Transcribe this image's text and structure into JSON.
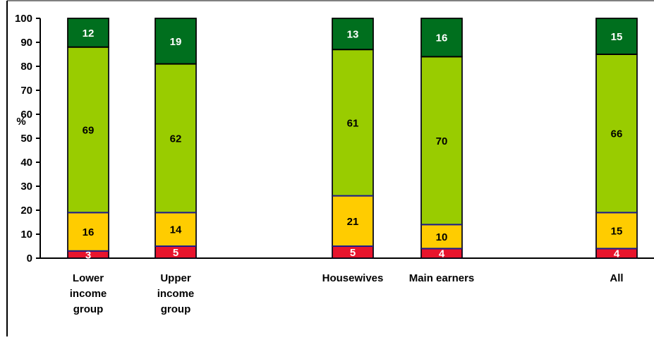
{
  "chart_data": {
    "type": "bar",
    "stacked": true,
    "title": "",
    "xlabel": "",
    "ylabel": "%",
    "ylim": [
      0,
      100
    ],
    "yticks": [
      0,
      10,
      20,
      30,
      40,
      50,
      60,
      70,
      80,
      90,
      100
    ],
    "categories": [
      [
        "Lower",
        "income",
        "group"
      ],
      [
        "Upper",
        "income",
        "group"
      ],
      [
        "Housewives"
      ],
      [
        "Main earners"
      ],
      [
        "All"
      ]
    ],
    "series": [
      {
        "values": [
          3,
          5,
          5,
          4,
          4
        ],
        "color": "#e8142d",
        "label_color": "#ffffff"
      },
      {
        "values": [
          16,
          14,
          21,
          10,
          15
        ],
        "color": "#ffcc00",
        "label_color": "#000000"
      },
      {
        "values": [
          69,
          62,
          61,
          70,
          66
        ],
        "color": "#99cc00",
        "label_color": "#000000"
      },
      {
        "values": [
          12,
          19,
          13,
          16,
          15
        ],
        "color": "#006f1e",
        "label_color": "#ffffff"
      }
    ],
    "segment_border_color": "#1a1a8c",
    "legend": "none",
    "grid": false
  }
}
